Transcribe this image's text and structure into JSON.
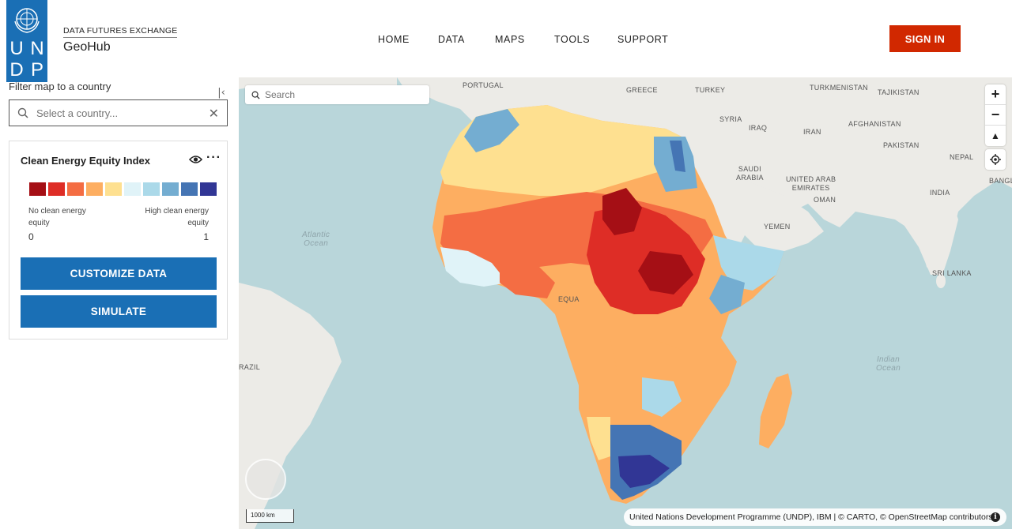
{
  "header": {
    "logo_letters": [
      "U",
      "N",
      "D",
      "P"
    ],
    "brand_sub": "DATA FUTURES EXCHANGE",
    "brand_title": "GeoHub",
    "nav": [
      "HOME",
      "DATA",
      "MAPS",
      "TOOLS",
      "SUPPORT"
    ],
    "signin_label": "SIGN IN",
    "colors": {
      "logo": "#1a6fb5",
      "signin": "#d12800"
    }
  },
  "sidebar": {
    "filter_label": "Filter map to a country",
    "country_placeholder": "Select a country...",
    "layer": {
      "title": "Clean Energy Equity Index",
      "legend_colors": [
        "#a50f15",
        "#de2d26",
        "#f46d43",
        "#fdae61",
        "#fee090",
        "#e0f3f8",
        "#abd9e9",
        "#74add1",
        "#4575b4",
        "#313695"
      ],
      "legend_left_label": "No clean energy equity",
      "legend_right_label": "High clean energy equity",
      "legend_min": "0",
      "legend_max": "1"
    },
    "customize_label": "CUSTOMIZE DATA",
    "simulate_label": "SIMULATE"
  },
  "map": {
    "search_placeholder": "Search",
    "places": {
      "portugal": "PORTUGAL",
      "greece": "GREECE",
      "turkey": "TURKEY",
      "turkmenistan": "TURKMENISTAN",
      "tajikistan": "TAJIKISTAN",
      "syria": "SYRIA",
      "iraq": "IRAQ",
      "iran": "IRAN",
      "afghanistan": "AFGHANISTAN",
      "pakistan": "PAKISTAN",
      "nepal": "NEPAL",
      "bangladesh": "BANGLAD",
      "saudi": "SAUDI\nARABIA",
      "uae": "UNITED ARAB\nEMIRATES",
      "oman": "OMAN",
      "india": "INDIA",
      "yemen": "YEMEN",
      "srilanka": "SRI LANKA",
      "brazil": "RAZIL",
      "equa": "EQUA",
      "atlantic": "Atlantic\nOcean",
      "indian": "Indian\nOcean"
    },
    "scale_label": "1000 km",
    "attribution": "United Nations Development Programme (UNDP), IBM | © CARTO, © OpenStreetMap contributors",
    "icons": [
      "search-icon",
      "zoom-in-icon",
      "zoom-out-icon",
      "compass-icon",
      "geolocate-icon",
      "info-icon"
    ]
  }
}
